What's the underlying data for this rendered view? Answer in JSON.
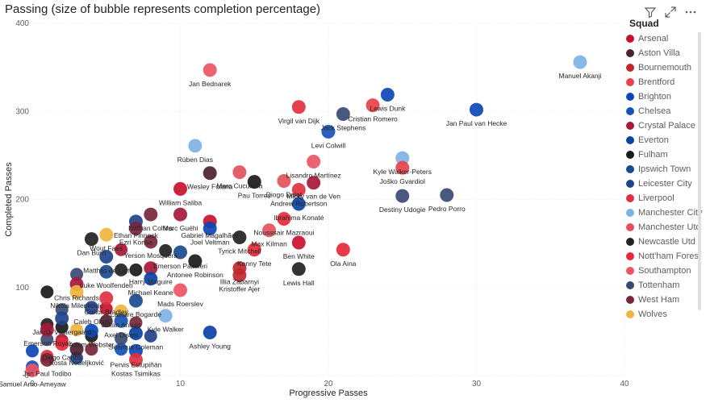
{
  "header": {
    "title": "Passing (size of bubble represents completion percentage)"
  },
  "icons": [
    "filter-icon",
    "focus-mode-icon",
    "more-options-icon"
  ],
  "legend": {
    "title": "Squad"
  },
  "squads": [
    {
      "name": "Arsenal",
      "color": "#c8102e"
    },
    {
      "name": "Aston Villa",
      "color": "#4a2330"
    },
    {
      "name": "Bournemouth",
      "color": "#c0272d"
    },
    {
      "name": "Brentford",
      "color": "#e8414a"
    },
    {
      "name": "Brighton",
      "color": "#0d47b5"
    },
    {
      "name": "Chelsea",
      "color": "#1653b8"
    },
    {
      "name": "Crystal Palace",
      "color": "#a8183a"
    },
    {
      "name": "Everton",
      "color": "#0b43a3"
    },
    {
      "name": "Fulham",
      "color": "#1a1a1a"
    },
    {
      "name": "Ipswich Town",
      "color": "#1a4a8f"
    },
    {
      "name": "Leicester City",
      "color": "#21438c"
    },
    {
      "name": "Liverpool",
      "color": "#e0303f"
    },
    {
      "name": "Manchester City",
      "color": "#7fb2e5"
    },
    {
      "name": "Manchester Utd",
      "color": "#e2515a"
    },
    {
      "name": "Newcastle Utd",
      "color": "#222222"
    },
    {
      "name": "Nott'ham Forest",
      "color": "#e8283a"
    },
    {
      "name": "Southampton",
      "color": "#ea5564"
    },
    {
      "name": "Tottenham",
      "color": "#3a4a73"
    },
    {
      "name": "West Ham",
      "color": "#7a263a"
    },
    {
      "name": "Wolves",
      "color": "#f0b440"
    }
  ],
  "chart_data": {
    "type": "scatter",
    "title": "Passing (size of bubble represents completion percentage)",
    "xlabel": "Progressive Passes",
    "ylabel": "Completed Passes",
    "xlim": [
      0,
      40
    ],
    "ylim": [
      0,
      400
    ],
    "xticks": [
      "0",
      "10",
      "20",
      "30",
      "40"
    ],
    "yticks": [
      "0",
      "100",
      "200",
      "300",
      "400"
    ],
    "grid": true,
    "legend_position": "right",
    "points": [
      {
        "label": "Manuel Akanji",
        "x": 37,
        "y": 356,
        "squad": "Manchester City"
      },
      {
        "label": "Jan Bednarek",
        "x": 12,
        "y": 347,
        "squad": "Southampton"
      },
      {
        "label": "Jan Paul van Hecke",
        "x": 30,
        "y": 302,
        "squad": "Brighton"
      },
      {
        "label": "Lewis Dunk",
        "x": 24,
        "y": 319,
        "squad": "Brighton"
      },
      {
        "label": "Cristian Romero",
        "x": 23,
        "y": 307,
        "squad": "Brentford"
      },
      {
        "label": "Virgil van Dijk",
        "x": 18,
        "y": 305,
        "squad": "Liverpool"
      },
      {
        "label": "Jack Stephens",
        "x": 21,
        "y": 297,
        "squad": "Tottenham"
      },
      {
        "label": "Levi Colwill",
        "x": 20,
        "y": 277,
        "squad": "Chelsea"
      },
      {
        "label": "Kyle Walker-Peters",
        "x": 25,
        "y": 247,
        "squad": "Manchester City"
      },
      {
        "label": "Joško Gvardiol",
        "x": 25,
        "y": 236,
        "squad": "Brentford"
      },
      {
        "label": "Destiny Udogie",
        "x": 25,
        "y": 204,
        "squad": "Tottenham"
      },
      {
        "label": "Pedro Porro",
        "x": 28,
        "y": 205,
        "squad": "Tottenham"
      },
      {
        "label": "Rúben Dias",
        "x": 11,
        "y": 261,
        "squad": "Manchester City"
      },
      {
        "label": "Wesley Fofana",
        "x": 12,
        "y": 230,
        "squad": "Aston Villa"
      },
      {
        "label": "Pau Torres",
        "x": 15,
        "y": 220,
        "squad": "Fulham"
      },
      {
        "label": "Marc Cucurella",
        "x": 14,
        "y": 231,
        "squad": "Manchester Utd"
      },
      {
        "label": "Lisandro Martínez",
        "x": 19,
        "y": 243,
        "squad": "Southampton"
      },
      {
        "label": "Diogo Dalot",
        "x": 17,
        "y": 221,
        "squad": "Manchester Utd"
      },
      {
        "label": "Micky van de Ven",
        "x": 19,
        "y": 219,
        "squad": "Crystal Palace"
      },
      {
        "label": "William Saliba",
        "x": 10,
        "y": 212,
        "squad": "Arsenal"
      },
      {
        "label": "Andrew Robertson",
        "x": 18,
        "y": 211,
        "squad": "Liverpool"
      },
      {
        "label": "Ibrahima Konaté",
        "x": 18,
        "y": 195,
        "squad": "Everton"
      },
      {
        "label": "Marc Guéhi",
        "x": 10,
        "y": 183,
        "squad": "Crystal Palace"
      },
      {
        "label": "Nathan Collins",
        "x": 8,
        "y": 183,
        "squad": "West Ham"
      },
      {
        "label": "Gabriel Magalhães",
        "x": 12,
        "y": 175,
        "squad": "Arsenal"
      },
      {
        "label": "Ethan Pinnock",
        "x": 7,
        "y": 175,
        "squad": "Leicester City"
      },
      {
        "label": "Nousssair Mazraoui",
        "x": 17,
        "y": 178,
        "squad": "Nott'ham Forest"
      },
      {
        "label": "Joel Veltman",
        "x": 12,
        "y": 167,
        "squad": "Brighton"
      },
      {
        "label": "Wout Faes",
        "x": 5,
        "y": 160,
        "squad": "Wolves"
      },
      {
        "label": "Ezri Konsa",
        "x": 7,
        "y": 167,
        "squad": "West Ham"
      },
      {
        "label": "Max Kilman",
        "x": 16,
        "y": 165,
        "squad": "Manchester Utd"
      },
      {
        "label": "Tyrick Mitchell",
        "x": 14,
        "y": 157,
        "squad": "Newcastle Utd"
      },
      {
        "label": "Yerson Mosquera",
        "x": 8,
        "y": 152,
        "squad": "West Ham"
      },
      {
        "label": "Dan Burn",
        "x": 4,
        "y": 155,
        "squad": "Newcastle Utd"
      },
      {
        "label": "Emerson Palmieri",
        "x": 10,
        "y": 140,
        "squad": "Ipswich Town"
      },
      {
        "label": "Kenny Tete",
        "x": 15,
        "y": 143,
        "squad": "Nott'ham Forest"
      },
      {
        "label": "Ben White",
        "x": 18,
        "y": 151,
        "squad": "Arsenal"
      },
      {
        "label": "Ola Aina",
        "x": 21,
        "y": 143,
        "squad": "Nott'ham Forest"
      },
      {
        "label": "Matthijs de Ligt",
        "x": 5,
        "y": 135,
        "squad": "Leicester City"
      },
      {
        "label": "Antonee Robinson",
        "x": 11,
        "y": 130,
        "squad": "Fulham"
      },
      {
        "label": "Illia Zabarnyi",
        "x": 14,
        "y": 122,
        "squad": "Bournemouth"
      },
      {
        "label": "Harry Maguire",
        "x": 8,
        "y": 122,
        "squad": "Crystal Palace"
      },
      {
        "label": "Lewis Hall",
        "x": 18,
        "y": 121,
        "squad": "Newcastle Utd"
      },
      {
        "label": "Chris Richards",
        "x": 3,
        "y": 104,
        "squad": "Crystal Palace"
      },
      {
        "label": "Luke Woolfenden",
        "x": 5,
        "y": 118,
        "squad": "Ipswich Town"
      },
      {
        "label": "Kristoffer Ajer",
        "x": 14,
        "y": 114,
        "squad": "Bournemouth"
      },
      {
        "label": "Nikola Milenković",
        "x": 3,
        "y": 95,
        "squad": "Wolves"
      },
      {
        "label": "Michael Keane",
        "x": 8,
        "y": 110,
        "squad": "Everton"
      },
      {
        "label": "Mads Roerslev",
        "x": 10,
        "y": 97,
        "squad": "Southampton"
      },
      {
        "label": "Conor Bradley",
        "x": 5,
        "y": 88,
        "squad": "Liverpool"
      },
      {
        "label": "Lamare Bogarde",
        "x": 7,
        "y": 85,
        "squad": "Ipswich Town"
      },
      {
        "label": "Caleb Okoli",
        "x": 4,
        "y": 77,
        "squad": "Leicester City"
      },
      {
        "label": "Julian Araujo",
        "x": 6,
        "y": 73,
        "squad": "Wolves"
      },
      {
        "label": "Jannik Vestergaard",
        "x": 2,
        "y": 65,
        "squad": "Leicester City"
      },
      {
        "label": "Axel Disasi",
        "x": 6,
        "y": 62,
        "squad": "Chelsea"
      },
      {
        "label": "Kyle Walker",
        "x": 9,
        "y": 68,
        "squad": "Manchester City"
      },
      {
        "label": "Ashley Young",
        "x": 12,
        "y": 49,
        "squad": "Everton"
      },
      {
        "label": "Emerson Royal",
        "x": 1,
        "y": 52,
        "squad": "Crystal Palace"
      },
      {
        "label": "Adam Webster",
        "x": 4,
        "y": 51,
        "squad": "Brighton"
      },
      {
        "label": "Séamus Coleman",
        "x": 7,
        "y": 48,
        "squad": "Everton"
      },
      {
        "label": "Diego Carlos",
        "x": 2,
        "y": 36,
        "squad": "Nott'ham Forest"
      },
      {
        "label": "Kosta Nedeljković",
        "x": 3,
        "y": 30,
        "squad": "Aston Villa"
      },
      {
        "label": "Pervis Estupiñán",
        "x": 7,
        "y": 28,
        "squad": "Brighton"
      },
      {
        "label": "Jan Paul Todibo",
        "x": 1,
        "y": 18,
        "squad": "West Ham"
      },
      {
        "label": "Kostas Tsimikas",
        "x": 7,
        "y": 18,
        "squad": "Liverpool"
      },
      {
        "label": "Samuel Amo-Ameyaw",
        "x": 0,
        "y": 6,
        "squad": "Southampton"
      }
    ],
    "unlabeled_points": [
      {
        "x": 0,
        "y": 28,
        "squad": "Brighton"
      },
      {
        "x": 0,
        "y": 10,
        "squad": "Chelsea"
      },
      {
        "x": 1,
        "y": 22,
        "squad": "Liverpool"
      },
      {
        "x": 1,
        "y": 41,
        "squad": "Tottenham"
      },
      {
        "x": 1,
        "y": 58,
        "squad": "Newcastle Utd"
      },
      {
        "x": 1,
        "y": 95,
        "squad": "Fulham"
      },
      {
        "x": 2,
        "y": 40,
        "squad": "Crystal Palace"
      },
      {
        "x": 2,
        "y": 55,
        "squad": "Fulham"
      },
      {
        "x": 3,
        "y": 20,
        "squad": "Leicester City"
      },
      {
        "x": 3,
        "y": 52,
        "squad": "Wolves"
      },
      {
        "x": 4,
        "y": 30,
        "squad": "West Ham"
      },
      {
        "x": 5,
        "y": 62,
        "squad": "Aston Villa"
      },
      {
        "x": 5,
        "y": 76,
        "squad": "Arsenal"
      },
      {
        "x": 6,
        "y": 30,
        "squad": "Chelsea"
      },
      {
        "x": 6,
        "y": 42,
        "squad": "Tottenham"
      },
      {
        "x": 6,
        "y": 120,
        "squad": "Newcastle Utd"
      },
      {
        "x": 6,
        "y": 143,
        "squad": "Crystal Palace"
      },
      {
        "x": 7,
        "y": 120,
        "squad": "Fulham"
      },
      {
        "x": 7,
        "y": 60,
        "squad": "West Ham"
      },
      {
        "x": 8,
        "y": 45,
        "squad": "Leicester City"
      },
      {
        "x": 9,
        "y": 142,
        "squad": "Newcastle Utd"
      },
      {
        "x": 3,
        "y": 115,
        "squad": "Tottenham"
      },
      {
        "x": 2,
        "y": 75,
        "squad": "Tottenham"
      },
      {
        "x": 4,
        "y": 45,
        "squad": "Fulham"
      }
    ]
  }
}
